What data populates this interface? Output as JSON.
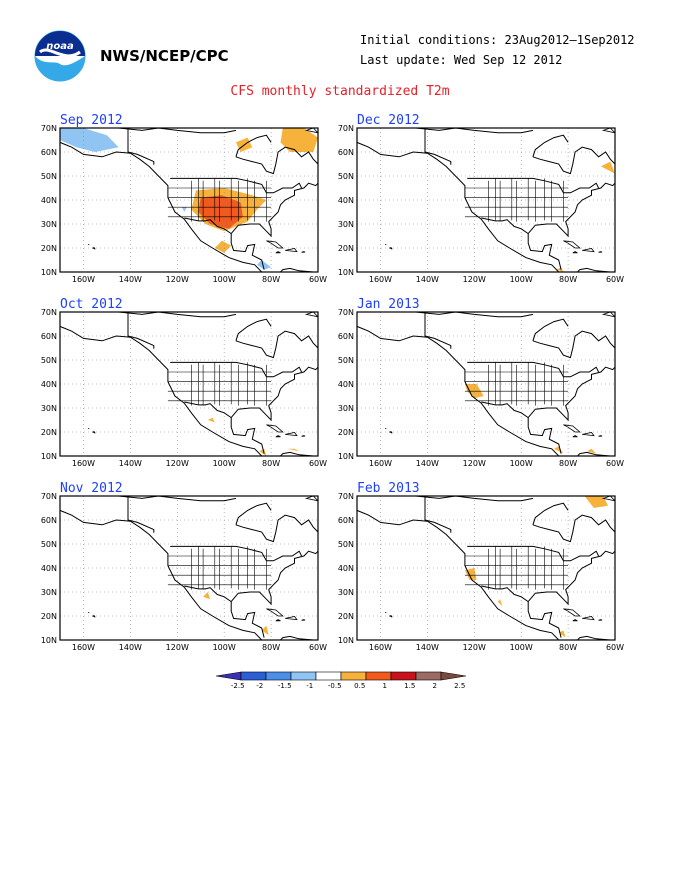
{
  "header": {
    "agency": "NWS/NCEP/CPC",
    "initial_conditions": "Initial conditions: 23Aug2012–1Sep2012",
    "last_update": "Last update: Wed Sep 12 2012",
    "title": "CFS monthly standardized T2m"
  },
  "logo": {
    "text": "noaa",
    "colors": [
      "#0b2d8f",
      "#35a9e8",
      "#ffffff"
    ]
  },
  "axes": {
    "lat_labels": [
      "70N",
      "60N",
      "50N",
      "40N",
      "30N",
      "20N",
      "10N"
    ],
    "lon_labels": [
      "160W",
      "140W",
      "120W",
      "100W",
      "80W",
      "60W"
    ]
  },
  "panels": [
    {
      "month": "Sep 2012"
    },
    {
      "month": "Dec 2012"
    },
    {
      "month": "Oct 2012"
    },
    {
      "month": "Jan 2013"
    },
    {
      "month": "Nov 2012"
    },
    {
      "month": "Feb 2013"
    }
  ],
  "colorbar": {
    "ticks": [
      "-2.5",
      "-2",
      "-1.5",
      "-1",
      "-0.5",
      "0.5",
      "1",
      "1.5",
      "2",
      "2.5"
    ],
    "colors": [
      "#3a2fb8",
      "#2a5fd6",
      "#4b8fe8",
      "#8fc4f3",
      "#ffffff",
      "#f7b23b",
      "#f25a1d",
      "#c8121c",
      "#9c6b63",
      "#7a4a3c"
    ]
  }
}
